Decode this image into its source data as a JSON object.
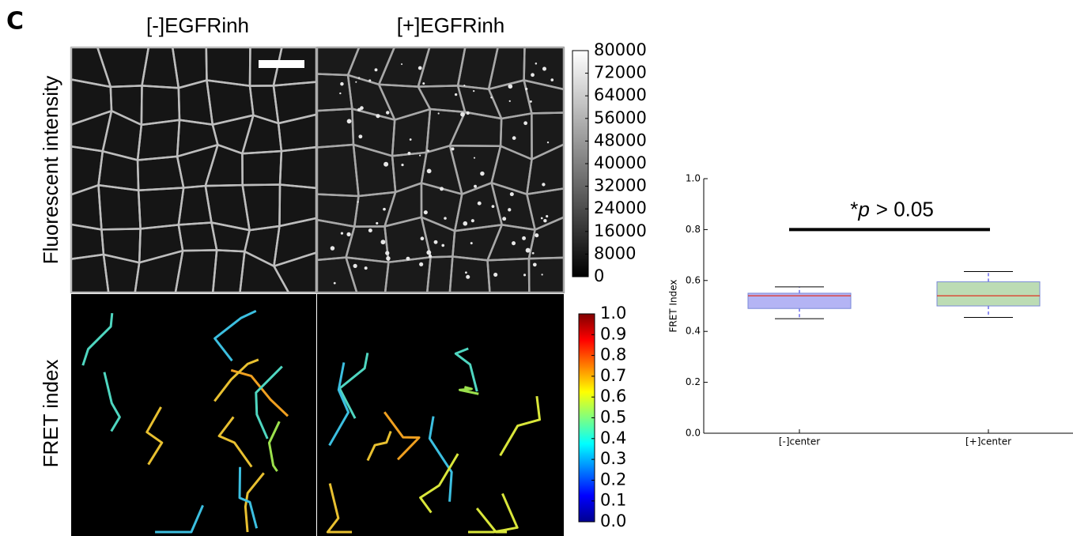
{
  "figure": {
    "panel_label": "C",
    "columns": [
      "[-]EGFRinh",
      "[+]EGFRinh"
    ],
    "rows": [
      "Fluorescent intensity",
      "FRET index"
    ]
  },
  "chart_data": [
    {
      "type": "colorbar",
      "colormap": "gray",
      "ylim": [
        0,
        80000
      ],
      "yticks": [
        0,
        8000,
        16000,
        24000,
        32000,
        40000,
        48000,
        56000,
        64000,
        72000,
        80000
      ]
    },
    {
      "type": "colorbar",
      "colormap": "jet",
      "ylim": [
        0,
        1
      ],
      "yticks": [
        {
          "value": 0,
          "label": "0.0"
        },
        0.1,
        0.2,
        0.3,
        0.4,
        0.5,
        0.6,
        0.7,
        0.8,
        0.9,
        {
          "value": 1,
          "label": "1.0"
        }
      ]
    },
    {
      "type": "box",
      "ylabel": "FRET Index",
      "categories": [
        "[-]center",
        "[+]center"
      ],
      "ylim": [
        0,
        1
      ],
      "yticks": [
        {
          "value": 0,
          "label": "0.0"
        },
        0.2,
        0.4,
        0.6,
        0.8,
        {
          "value": 1,
          "label": "1.0"
        }
      ],
      "boxes": [
        {
          "whisker_low": 0.45,
          "q1": 0.49,
          "median": 0.54,
          "q3": 0.55,
          "whisker_high": 0.575,
          "color": "#b4b4f4"
        },
        {
          "whisker_low": 0.455,
          "q1": 0.5,
          "median": 0.54,
          "q3": 0.595,
          "whisker_high": 0.635,
          "color": "#bcdcb4"
        }
      ],
      "annotation": {
        "parts": [
          "*",
          "p",
          "> 0.05"
        ],
        "y": 0.8
      }
    }
  ]
}
